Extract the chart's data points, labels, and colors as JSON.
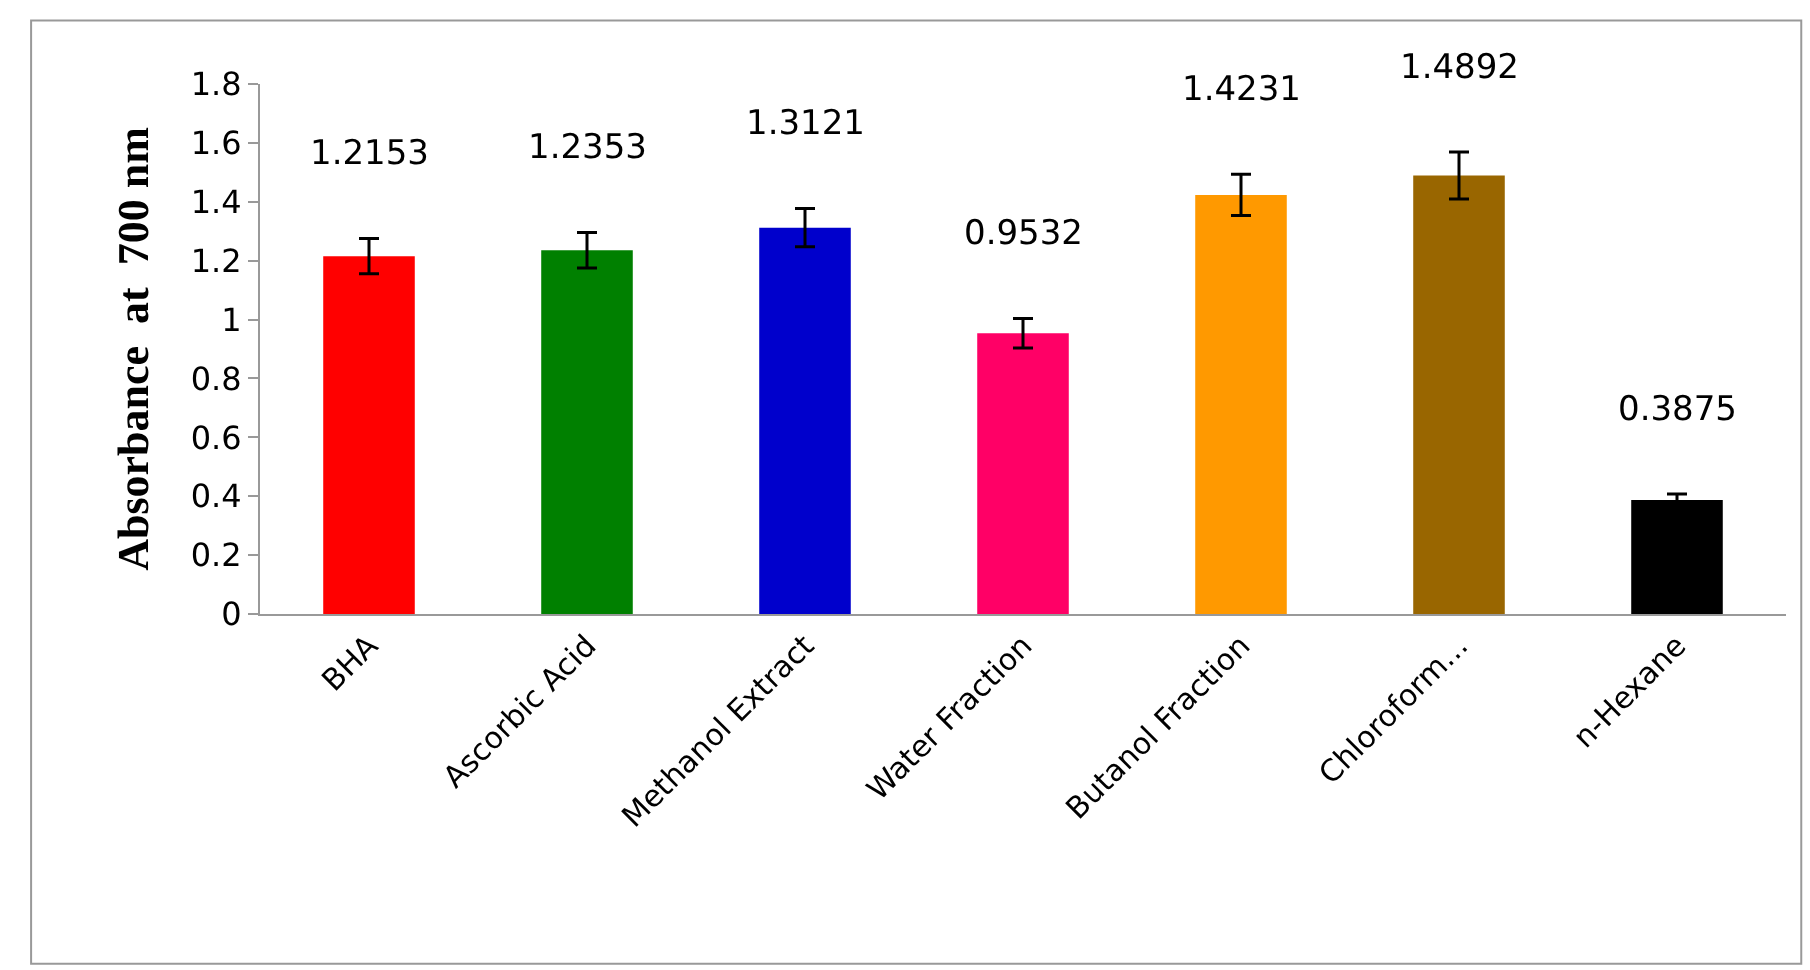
{
  "chart_data": {
    "type": "bar",
    "ylabel": "Absorbance  at  700 nm",
    "categories": [
      "BHA",
      "Ascorbic Acid",
      "Methanol Extract",
      "Water Fraction",
      "Butanol Fraction",
      "Chloroform...",
      "n-Hexane"
    ],
    "values": [
      1.2153,
      1.2353,
      1.3121,
      0.9532,
      1.4231,
      1.4892,
      0.3875
    ],
    "colors": [
      "#ff0000",
      "#008000",
      "#0000cc",
      "#ff0066",
      "#ff9900",
      "#996600",
      "#000000"
    ],
    "errors": [
      0.06,
      0.06,
      0.065,
      0.05,
      0.07,
      0.08,
      0.02
    ],
    "data_labels": true,
    "ylim": [
      0,
      1.8
    ],
    "yticks": [
      0,
      0.2,
      0.4,
      0.6,
      0.8,
      1,
      1.2,
      1.4,
      1.6,
      1.8
    ],
    "grid": false
  }
}
